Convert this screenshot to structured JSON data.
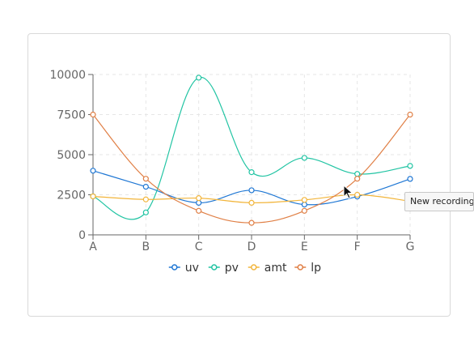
{
  "chart_data": {
    "type": "line",
    "categories": [
      "A",
      "B",
      "C",
      "D",
      "E",
      "F",
      "G"
    ],
    "ylim": [
      0,
      10000
    ],
    "yticks": [
      0,
      2500,
      5000,
      7500,
      10000
    ],
    "ytick_labels": [
      "0",
      "2500",
      "5000",
      "7500",
      "10000"
    ],
    "grid": true,
    "legend_position": "bottom",
    "series": [
      {
        "name": "uv",
        "color": "#1f77d4",
        "values": [
          4000,
          3000,
          2000,
          2780,
          1890,
          2390,
          3490
        ]
      },
      {
        "name": "pv",
        "color": "#21c4a3",
        "values": [
          2400,
          1398,
          9800,
          3908,
          4800,
          3800,
          4300
        ]
      },
      {
        "name": "amt",
        "color": "#f2b53b",
        "values": [
          2400,
          2210,
          2290,
          2000,
          2181,
          2500,
          2100
        ]
      },
      {
        "name": "lp",
        "color": "#e07f45",
        "values": [
          7500,
          3500,
          1500,
          750,
          1500,
          3500,
          7500
        ]
      }
    ]
  },
  "tooltip": {
    "text": "New recording"
  }
}
